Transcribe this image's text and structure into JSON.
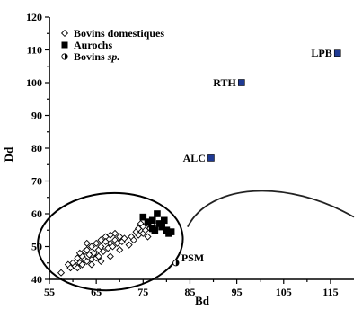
{
  "chart_data": {
    "type": "scatter",
    "xlabel": "Bd",
    "ylabel": "Dd",
    "xlim": [
      55,
      120
    ],
    "ylim": [
      40,
      120
    ],
    "xticks": [
      55,
      65,
      75,
      85,
      95,
      105,
      115
    ],
    "yticks": [
      40,
      50,
      60,
      70,
      80,
      90,
      100,
      110,
      120
    ],
    "legend": {
      "placement": "top-left",
      "entries": [
        {
          "label": "Bovins domestiques",
          "marker": "diamond-open"
        },
        {
          "label": "Aurochs",
          "marker": "square-filled"
        },
        {
          "label_main": "Bovins ",
          "label_italic": "sp.",
          "marker": "circle-half"
        }
      ]
    },
    "series": [
      {
        "name": "Bovins domestiques",
        "marker": "diamond-open",
        "color": "#000000",
        "points": [
          [
            57.5,
            42
          ],
          [
            59,
            44.5
          ],
          [
            59.5,
            43.5
          ],
          [
            60,
            45
          ],
          [
            60.5,
            44
          ],
          [
            61,
            46.5
          ],
          [
            61,
            43.5
          ],
          [
            61.5,
            45
          ],
          [
            62,
            47
          ],
          [
            62,
            44.5
          ],
          [
            62.5,
            48.5
          ],
          [
            62.5,
            46
          ],
          [
            63,
            45.5
          ],
          [
            63,
            49
          ],
          [
            63.5,
            47.5
          ],
          [
            64,
            46
          ],
          [
            64,
            50
          ],
          [
            64.5,
            48
          ],
          [
            65,
            46.5
          ],
          [
            65,
            51
          ],
          [
            65.5,
            49
          ],
          [
            65.5,
            47
          ],
          [
            66,
            52
          ],
          [
            66,
            50
          ],
          [
            66.5,
            48.5
          ],
          [
            67,
            53
          ],
          [
            67,
            51.5
          ],
          [
            67.5,
            49.5
          ],
          [
            68,
            53.5
          ],
          [
            68,
            51
          ],
          [
            68.5,
            50
          ],
          [
            69,
            54
          ],
          [
            69,
            52
          ],
          [
            69.5,
            51
          ],
          [
            70,
            53
          ],
          [
            70.5,
            51.5
          ],
          [
            71,
            52.5
          ],
          [
            72,
            50.5
          ],
          [
            72.5,
            53
          ],
          [
            73,
            52
          ],
          [
            73.5,
            54.5
          ],
          [
            74,
            55.5
          ],
          [
            74,
            53.5
          ],
          [
            74.5,
            57
          ],
          [
            75,
            56
          ],
          [
            75,
            54
          ],
          [
            75.5,
            55
          ],
          [
            76,
            57
          ],
          [
            76,
            53
          ],
          [
            76.5,
            55.5
          ],
          [
            77,
            56.5
          ],
          [
            66,
            45.5
          ],
          [
            68,
            47
          ],
          [
            70,
            49
          ],
          [
            64,
            44.5
          ],
          [
            63,
            51
          ],
          [
            61.5,
            48
          ]
        ]
      },
      {
        "name": "Aurochs",
        "marker": "square-filled",
        "color": "#000000",
        "points": [
          [
            75,
            59
          ],
          [
            76,
            57.5
          ],
          [
            77,
            58
          ],
          [
            77.5,
            55
          ],
          [
            78,
            60
          ],
          [
            78.5,
            57
          ],
          [
            79,
            56
          ],
          [
            79.5,
            58
          ],
          [
            80,
            55
          ],
          [
            80.5,
            54
          ],
          [
            81,
            54.5
          ],
          [
            77,
            55.5
          ]
        ]
      },
      {
        "name": "Bovins sp.",
        "marker": "circle-half",
        "color": "#000000",
        "points": [
          [
            82,
            45
          ]
        ]
      },
      {
        "name": "Aurochs (labelled)",
        "marker": "square-filled",
        "color": "#1f3a93",
        "points": [
          {
            "x": 89.5,
            "y": 77,
            "label": "ALC"
          },
          {
            "x": 96,
            "y": 100,
            "label": "RTH"
          },
          {
            "x": 116.5,
            "y": 109,
            "label": "LPB"
          }
        ]
      },
      {
        "name": "Bovins sp. (labelled)",
        "marker": "circle-half",
        "color": "#000000",
        "points": [
          {
            "x": 82,
            "y": 45,
            "label": "PSM"
          }
        ]
      }
    ],
    "annotations": {
      "ellipse": {
        "cx": 68,
        "cy": 51.5,
        "rx": 15.5,
        "ry": 14.8
      },
      "arc": {
        "from": [
          84.5,
          56
        ],
        "peak": [
          99,
          68
        ],
        "to": [
          120,
          59
        ]
      }
    }
  }
}
